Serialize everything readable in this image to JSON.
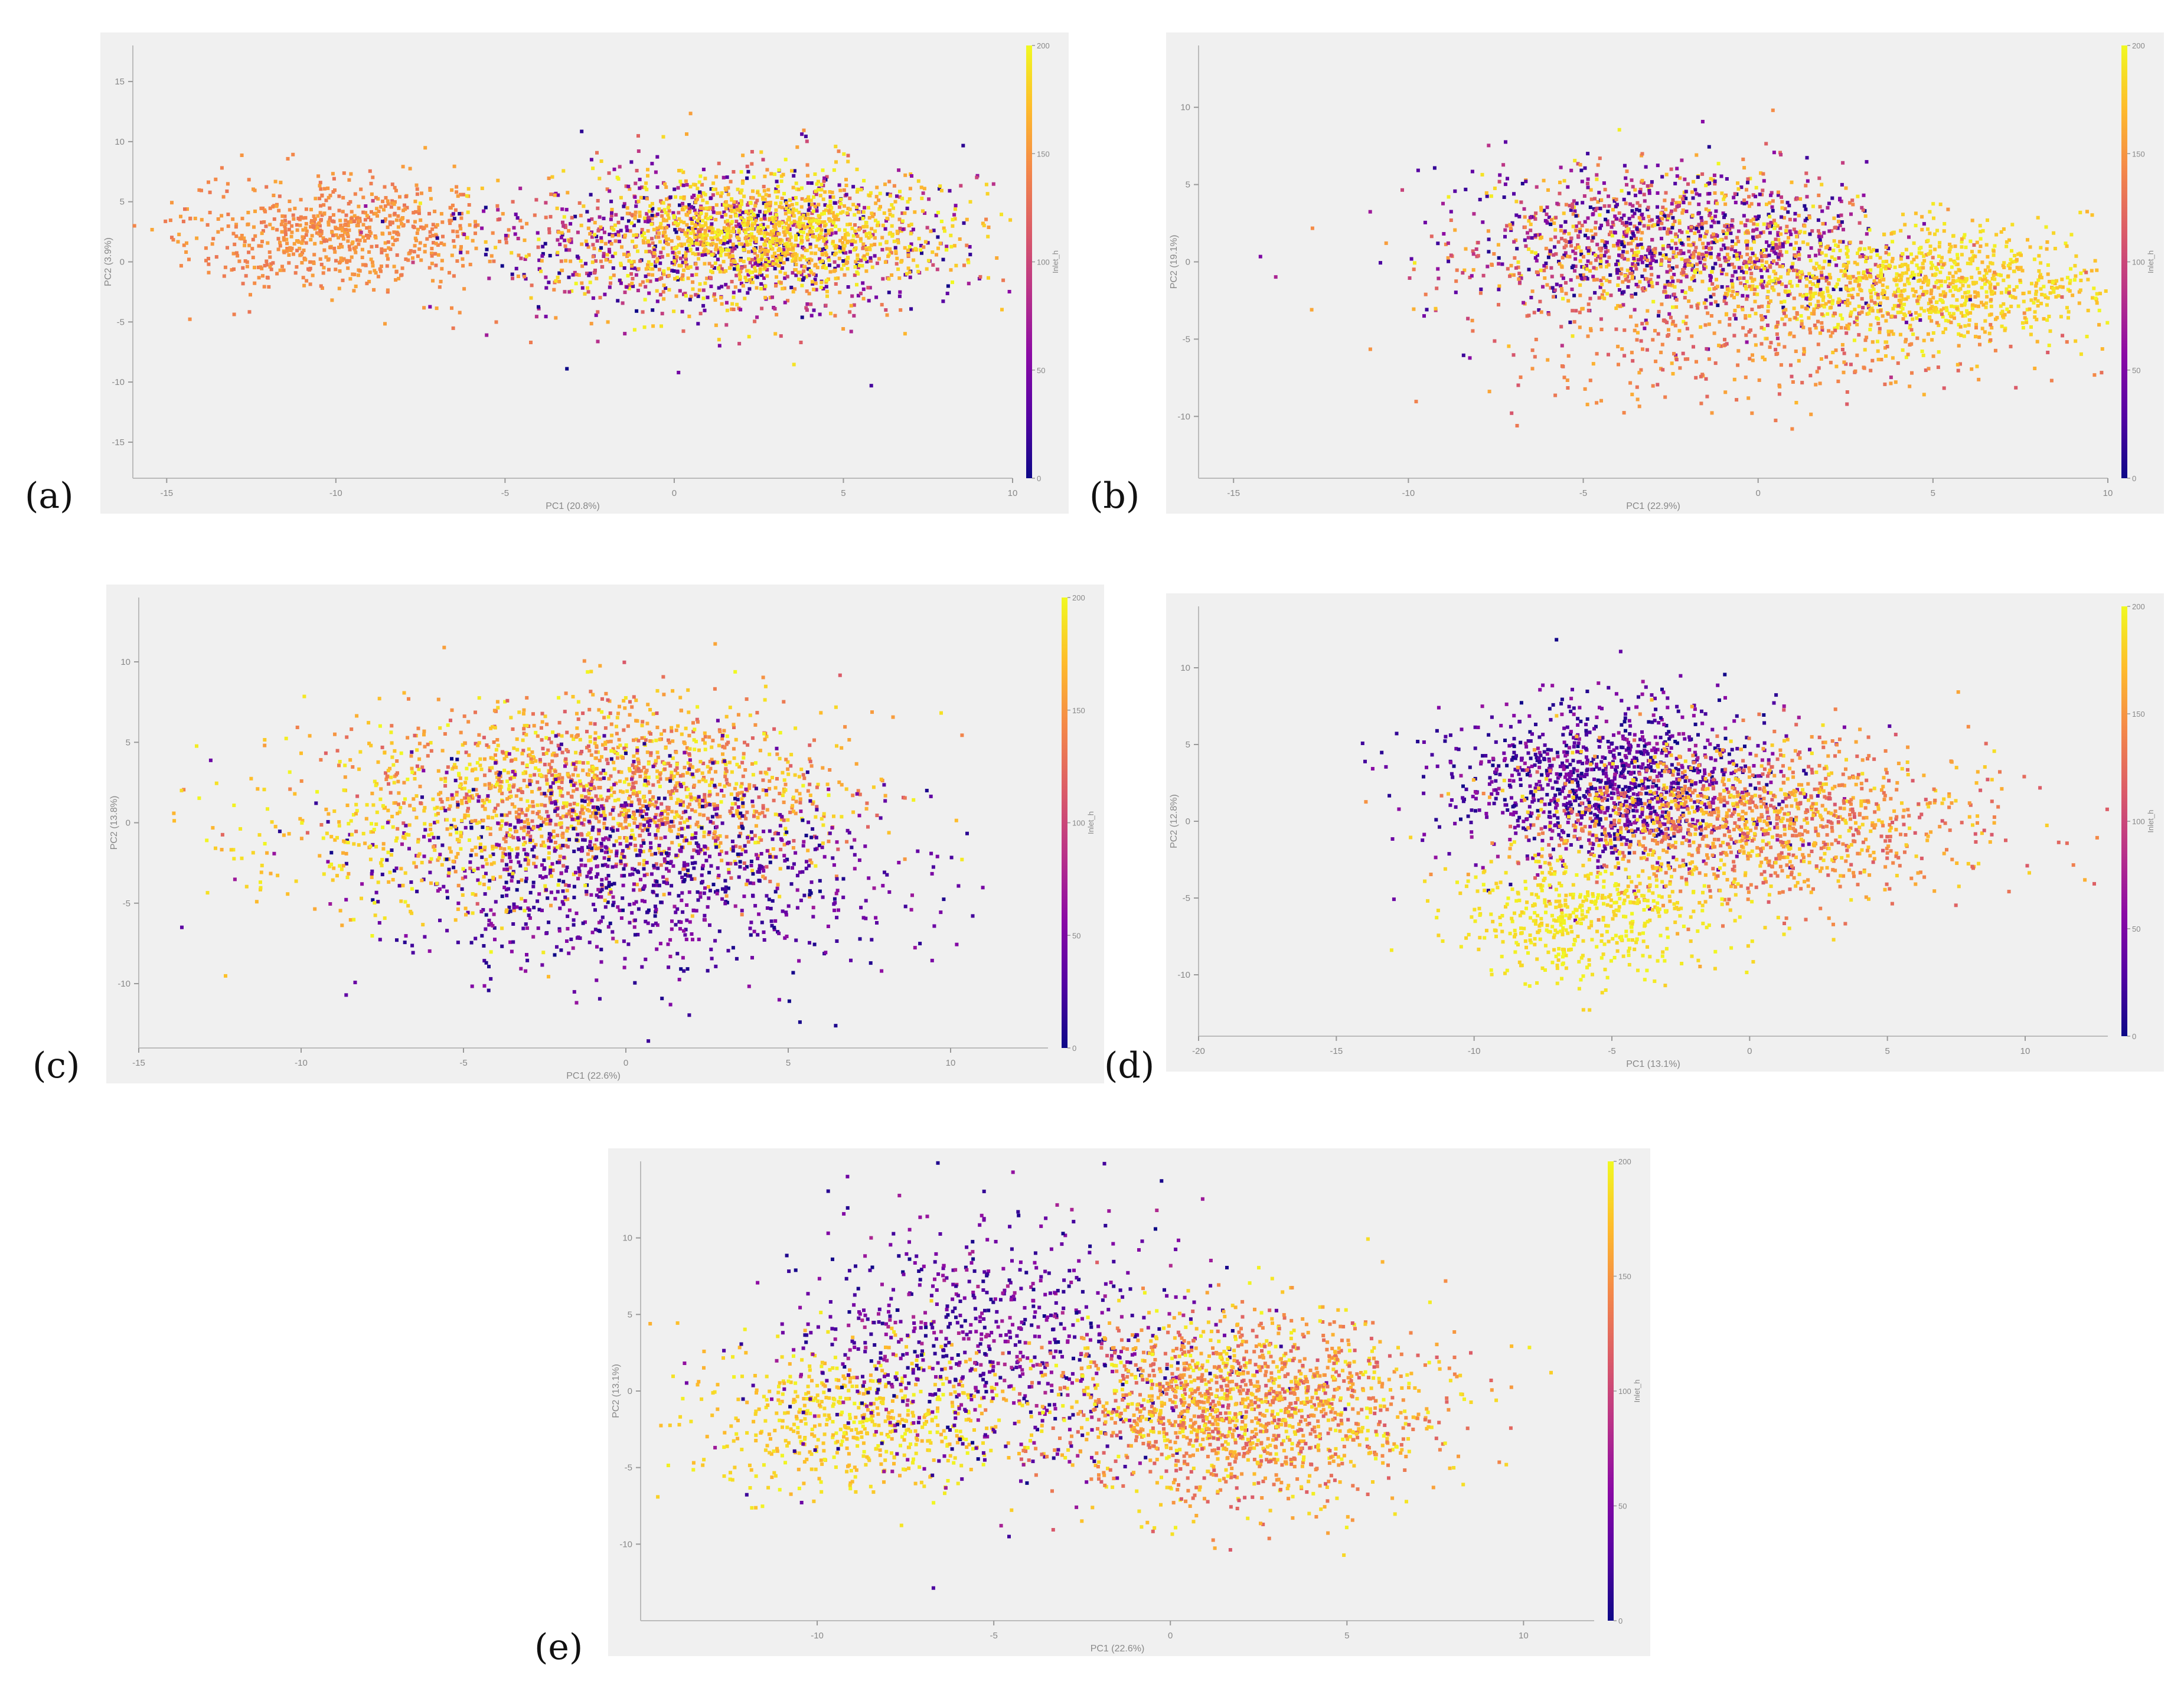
{
  "figure": {
    "panel_labels": [
      "(a)",
      "(b)",
      "(c)",
      "(d)",
      "(e)"
    ]
  },
  "chart_data": [
    {
      "type": "scatter",
      "panel": "(a)",
      "xlabel": "PC1 (20.8%)",
      "ylabel": "PC2 (3.9%)",
      "xlim": [
        -16,
        10
      ],
      "ylim": [
        -18,
        18
      ],
      "xticks": [
        -15,
        -10,
        -5,
        0,
        5,
        10
      ],
      "yticks": [
        -15,
        -10,
        -5,
        0,
        5,
        10,
        15
      ],
      "colorbar": {
        "label": "Inlet_h",
        "range": [
          0,
          200
        ],
        "ticks": [
          0,
          50,
          100,
          150,
          200
        ],
        "colormap": "plasma"
      },
      "clusters": [
        {
          "cx": -10,
          "cy": 2.5,
          "sx": 2.2,
          "sy": 2.3,
          "n": 700,
          "color_value": [
            130,
            160
          ]
        },
        {
          "cx": 1.5,
          "cy": 1.5,
          "sx": 3.5,
          "sy": 3.3,
          "n": 1300,
          "color_value": [
            0,
            200
          ]
        },
        {
          "cx": 3,
          "cy": 2.5,
          "sx": 2.5,
          "sy": 2.2,
          "n": 900,
          "color_value": [
            160,
            200
          ]
        }
      ]
    },
    {
      "type": "scatter",
      "panel": "(b)",
      "xlabel": "PC1 (22.9%)",
      "ylabel": "PC2 (19.1%)",
      "xlim": [
        -16,
        10
      ],
      "ylim": [
        -14,
        14
      ],
      "xticks": [
        -15,
        -10,
        -5,
        0,
        5,
        10
      ],
      "yticks": [
        -10,
        -5,
        0,
        5,
        10
      ],
      "colorbar": {
        "label": "Inlet_h",
        "range": [
          0,
          200
        ],
        "ticks": [
          0,
          50,
          100,
          150,
          200
        ],
        "colormap": "plasma"
      },
      "clusters": [
        {
          "cx": -2.5,
          "cy": 1,
          "sx": 3.2,
          "sy": 2.4,
          "n": 1500,
          "color_value": [
            0,
            200
          ]
        },
        {
          "cx": 5,
          "cy": -1.5,
          "sx": 2.8,
          "sy": 1.8,
          "n": 900,
          "color_value": [
            165,
            200
          ]
        },
        {
          "cx": 0,
          "cy": -5,
          "sx": 4,
          "sy": 2.5,
          "n": 400,
          "color_value": [
            110,
            170
          ]
        }
      ]
    },
    {
      "type": "scatter",
      "panel": "(c)",
      "xlabel": "PC1 (22.6%)",
      "ylabel": "PC2 (13.8%)",
      "xlim": [
        -15,
        13
      ],
      "ylim": [
        -14,
        14
      ],
      "xticks": [
        -15,
        -10,
        -5,
        0,
        5,
        10
      ],
      "yticks": [
        -10,
        -5,
        0,
        5,
        10
      ],
      "colorbar": {
        "label": "Inlet_h",
        "range": [
          0,
          200
        ],
        "ticks": [
          0,
          50,
          100,
          150,
          200
        ],
        "colormap": "plasma"
      },
      "clusters": [
        {
          "cx": -0.5,
          "cy": 2,
          "sx": 3.8,
          "sy": 2.8,
          "n": 1600,
          "color_value": [
            110,
            200
          ]
        },
        {
          "cx": 0.5,
          "cy": -3,
          "sx": 4,
          "sy": 3.2,
          "n": 1000,
          "color_value": [
            0,
            70
          ]
        },
        {
          "cx": -7,
          "cy": -1,
          "sx": 2.8,
          "sy": 2.8,
          "n": 250,
          "color_value": [
            160,
            200
          ]
        }
      ]
    },
    {
      "type": "scatter",
      "panel": "(d)",
      "xlabel": "PC1 (13.1%)",
      "ylabel": "PC2 (12.8%)",
      "xlim": [
        -20,
        13
      ],
      "ylim": [
        -14,
        14
      ],
      "xticks": [
        -20,
        -15,
        -10,
        -5,
        0,
        5,
        10
      ],
      "yticks": [
        -10,
        -5,
        0,
        5,
        10
      ],
      "colorbar": {
        "label": "Inlet_h",
        "range": [
          0,
          200
        ],
        "ticks": [
          0,
          50,
          100,
          150,
          200
        ],
        "colormap": "plasma"
      },
      "clusters": [
        {
          "cx": -5,
          "cy": 2.5,
          "sx": 3,
          "sy": 2.5,
          "n": 1200,
          "color_value": [
            0,
            70
          ]
        },
        {
          "cx": 0,
          "cy": 0,
          "sx": 4,
          "sy": 2.5,
          "n": 1300,
          "color_value": [
            110,
            190
          ]
        },
        {
          "cx": -6,
          "cy": -6,
          "sx": 2.5,
          "sy": 2,
          "n": 500,
          "color_value": [
            180,
            200
          ]
        }
      ]
    },
    {
      "type": "scatter",
      "panel": "(e)",
      "xlabel": "PC1 (22.6%)",
      "ylabel": "PC2 (13.1%)",
      "xlim": [
        -15,
        12
      ],
      "ylim": [
        -15,
        15
      ],
      "xticks": [
        -10,
        -5,
        0,
        5,
        10
      ],
      "yticks": [
        -10,
        -5,
        0,
        5,
        10
      ],
      "colorbar": {
        "label": "Inlet_h",
        "range": [
          0,
          200
        ],
        "ticks": [
          0,
          50,
          100,
          150,
          200
        ],
        "colormap": "plasma"
      },
      "clusters": [
        {
          "cx": -9,
          "cy": -2,
          "sx": 2.3,
          "sy": 2.5,
          "n": 600,
          "color_value": [
            165,
            200
          ]
        },
        {
          "cx": -5,
          "cy": 3,
          "sx": 3,
          "sy": 4,
          "n": 800,
          "color_value": [
            0,
            80
          ]
        },
        {
          "cx": 2,
          "cy": -1,
          "sx": 2.8,
          "sy": 3,
          "n": 1700,
          "color_value": [
            110,
            200
          ]
        }
      ]
    }
  ]
}
